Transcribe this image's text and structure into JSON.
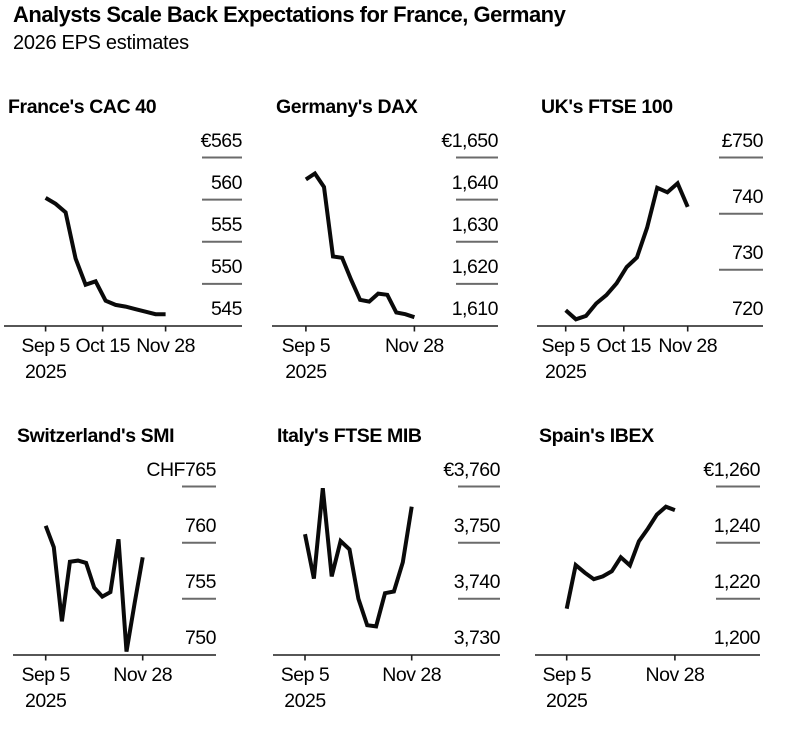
{
  "header": {
    "title": "Analysts Scale Back Expectations for France, Germany",
    "subtitle": "2026 EPS estimates"
  },
  "colors": {
    "background": "#ffffff",
    "text": "#000000",
    "series_line": "#0a0a0a",
    "axis_line": "#1f1f1f",
    "grid_tick": "#6b6b6b"
  },
  "chart_data": [
    {
      "type": "line",
      "title": "France's CAC 40",
      "currency_prefix": "€",
      "x": [
        "Sep 5",
        "Sep 12",
        "Sep 19",
        "Sep 26",
        "Oct 3",
        "Oct 10",
        "Oct 17",
        "Oct 24",
        "Oct 31",
        "Nov 7",
        "Nov 14",
        "Nov 21",
        "Nov 28"
      ],
      "values": [
        560.2,
        559.5,
        558.5,
        553.0,
        549.9,
        550.3,
        548.0,
        547.5,
        547.3,
        547.0,
        546.7,
        546.4,
        546.4
      ],
      "ylim": [
        545,
        565
      ],
      "yticks": [
        {
          "label": "€565",
          "value": 565
        },
        {
          "label": "560",
          "value": 560
        },
        {
          "label": "555",
          "value": 555
        },
        {
          "label": "550",
          "value": 550
        },
        {
          "label": "545",
          "value": 545
        }
      ],
      "xticks": [
        {
          "label": "Sep 5",
          "sub": "2025",
          "week": 0
        },
        {
          "label": "Oct 15",
          "week": 5.71
        },
        {
          "label": "Nov 28",
          "week": 12
        }
      ]
    },
    {
      "type": "line",
      "title": "Germany's DAX",
      "currency_prefix": "€",
      "x": [
        "Sep 5",
        "Sep 12",
        "Sep 19",
        "Sep 26",
        "Oct 3",
        "Oct 10",
        "Oct 17",
        "Oct 24",
        "Oct 31",
        "Nov 7",
        "Nov 14",
        "Nov 21",
        "Nov 28"
      ],
      "values": [
        1644.8,
        1646.2,
        1643.0,
        1626.5,
        1626.2,
        1621.0,
        1616.2,
        1615.8,
        1617.7,
        1617.4,
        1613.2,
        1612.8,
        1612.1
      ],
      "ylim": [
        1610,
        1650
      ],
      "yticks": [
        {
          "label": "€1,650",
          "value": 1650
        },
        {
          "label": "1,640",
          "value": 1640
        },
        {
          "label": "1,630",
          "value": 1630
        },
        {
          "label": "1,620",
          "value": 1620
        },
        {
          "label": "1,610",
          "value": 1610
        }
      ],
      "xticks": [
        {
          "label": "Sep 5",
          "sub": "2025",
          "week": 0
        },
        {
          "label": "Nov 28",
          "week": 12
        }
      ]
    },
    {
      "type": "line",
      "title": "UK's FTSE 100",
      "currency_prefix": "£",
      "x": [
        "Sep 5",
        "Sep 12",
        "Sep 19",
        "Sep 26",
        "Oct 3",
        "Oct 10",
        "Oct 17",
        "Oct 24",
        "Oct 31",
        "Nov 7",
        "Nov 14",
        "Nov 21",
        "Nov 28"
      ],
      "values": [
        722.8,
        721.2,
        721.8,
        724.0,
        725.5,
        727.6,
        730.5,
        732.2,
        737.5,
        744.6,
        743.8,
        745.4,
        741.2
      ],
      "ylim": [
        720,
        750
      ],
      "yticks": [
        {
          "label": "£750",
          "value": 750
        },
        {
          "label": "740",
          "value": 740
        },
        {
          "label": "730",
          "value": 730
        },
        {
          "label": "720",
          "value": 720
        }
      ],
      "xticks": [
        {
          "label": "Sep 5",
          "sub": "2025",
          "week": 0
        },
        {
          "label": "Oct 15",
          "week": 5.71
        },
        {
          "label": "Nov 28",
          "week": 12
        }
      ]
    },
    {
      "type": "line",
      "title": "Switzerland's SMI",
      "currency_prefix": "CHF",
      "x": [
        "Sep 5",
        "Sep 12",
        "Sep 19",
        "Sep 26",
        "Oct 3",
        "Oct 10",
        "Oct 17",
        "Oct 24",
        "Oct 31",
        "Nov 7",
        "Nov 14",
        "Nov 21",
        "Nov 28"
      ],
      "values": [
        761.5,
        759.6,
        753.0,
        758.3,
        758.4,
        758.2,
        756.0,
        755.2,
        755.6,
        760.3,
        750.3,
        754.6,
        758.7
      ],
      "ylim": [
        750,
        765
      ],
      "yticks": [
        {
          "label": "CHF765",
          "value": 765
        },
        {
          "label": "760",
          "value": 760
        },
        {
          "label": "755",
          "value": 755
        },
        {
          "label": "750",
          "value": 750
        }
      ],
      "xticks": [
        {
          "label": "Sep 5",
          "sub": "2025",
          "week": 0
        },
        {
          "label": "Nov 28",
          "week": 12
        }
      ]
    },
    {
      "type": "line",
      "title": "Italy's FTSE MIB",
      "currency_prefix": "€",
      "x": [
        "Sep 5",
        "Sep 12",
        "Sep 19",
        "Sep 26",
        "Oct 3",
        "Oct 10",
        "Oct 17",
        "Oct 24",
        "Oct 31",
        "Nov 7",
        "Nov 14",
        "Nov 21",
        "Nov 28"
      ],
      "values": [
        3751.5,
        3743.6,
        3759.7,
        3744.0,
        3750.3,
        3748.8,
        3740.0,
        3735.3,
        3735.1,
        3741.0,
        3741.3,
        3746.5,
        3756.4
      ],
      "ylim": [
        3730,
        3760
      ],
      "yticks": [
        {
          "label": "€3,760",
          "value": 3760
        },
        {
          "label": "3,750",
          "value": 3750
        },
        {
          "label": "3,740",
          "value": 3740
        },
        {
          "label": "3,730",
          "value": 3730
        }
      ],
      "xticks": [
        {
          "label": "Sep 5",
          "sub": "2025",
          "week": 0
        },
        {
          "label": "Nov 28",
          "week": 12
        }
      ]
    },
    {
      "type": "line",
      "title": "Spain's IBEX",
      "currency_prefix": "€",
      "x": [
        "Sep 5",
        "Sep 12",
        "Sep 19",
        "Sep 26",
        "Oct 3",
        "Oct 10",
        "Oct 17",
        "Oct 24",
        "Oct 31",
        "Nov 7",
        "Nov 14",
        "Nov 21",
        "Nov 28"
      ],
      "values": [
        1216.5,
        1232.0,
        1229.3,
        1227.0,
        1228.0,
        1229.8,
        1234.8,
        1231.9,
        1240.5,
        1245.0,
        1250.0,
        1252.8,
        1251.6
      ],
      "ylim": [
        1200,
        1260
      ],
      "yticks": [
        {
          "label": "€1,260",
          "value": 1260
        },
        {
          "label": "1,240",
          "value": 1240
        },
        {
          "label": "1,220",
          "value": 1220
        },
        {
          "label": "1,200",
          "value": 1200
        }
      ],
      "xticks": [
        {
          "label": "Sep 5",
          "sub": "2025",
          "week": 0
        },
        {
          "label": "Nov 28",
          "week": 12
        }
      ]
    }
  ]
}
